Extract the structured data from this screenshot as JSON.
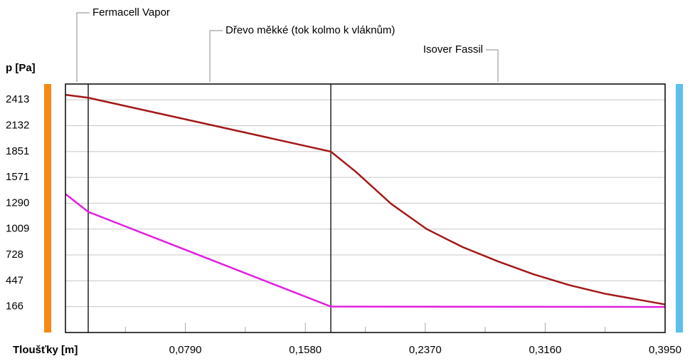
{
  "chart_data": {
    "type": "line",
    "y_label": "p [Pa]",
    "x_label": "Tloušťky [m]",
    "annotations": [
      "Fermacell Vapor",
      "Dřevo měkké (tok kolmo k vláknům)",
      "Isover Fassil"
    ],
    "layer_boundaries": [
      0.015,
      0.1748
    ],
    "xlim": [
      0,
      0.395
    ],
    "xticks": [
      {
        "value": 0.079,
        "label": "0,0790"
      },
      {
        "value": 0.158,
        "label": "0,1580"
      },
      {
        "value": 0.237,
        "label": "0,2370"
      },
      {
        "value": 0.316,
        "label": "0,3160"
      },
      {
        "value": 0.395,
        "label": "0,3950"
      }
    ],
    "xminorticks": [
      0.0395,
      0.1185,
      0.1975,
      0.2765,
      0.3555
    ],
    "ylim": [
      -115,
      2585
    ],
    "yticks": [
      166,
      447,
      728,
      1009,
      1290,
      1571,
      1851,
      2132,
      2413
    ],
    "grid": true,
    "series": [
      {
        "color": "#a31818",
        "x": [
          0,
          0.015,
          0.1748,
          0.1912,
          0.2146,
          0.238,
          0.2615,
          0.2849,
          0.3083,
          0.3317,
          0.3552,
          0.395
        ],
        "values": [
          2468,
          2436,
          1851,
          1633,
          1282,
          1009,
          814,
          658,
          518,
          401,
          307,
          190
        ]
      },
      {
        "color": "#e020e0",
        "x": [
          0,
          0.015,
          0.1748,
          0.395
        ],
        "values": [
          1391,
          1196,
          167,
          163
        ]
      }
    ]
  }
}
